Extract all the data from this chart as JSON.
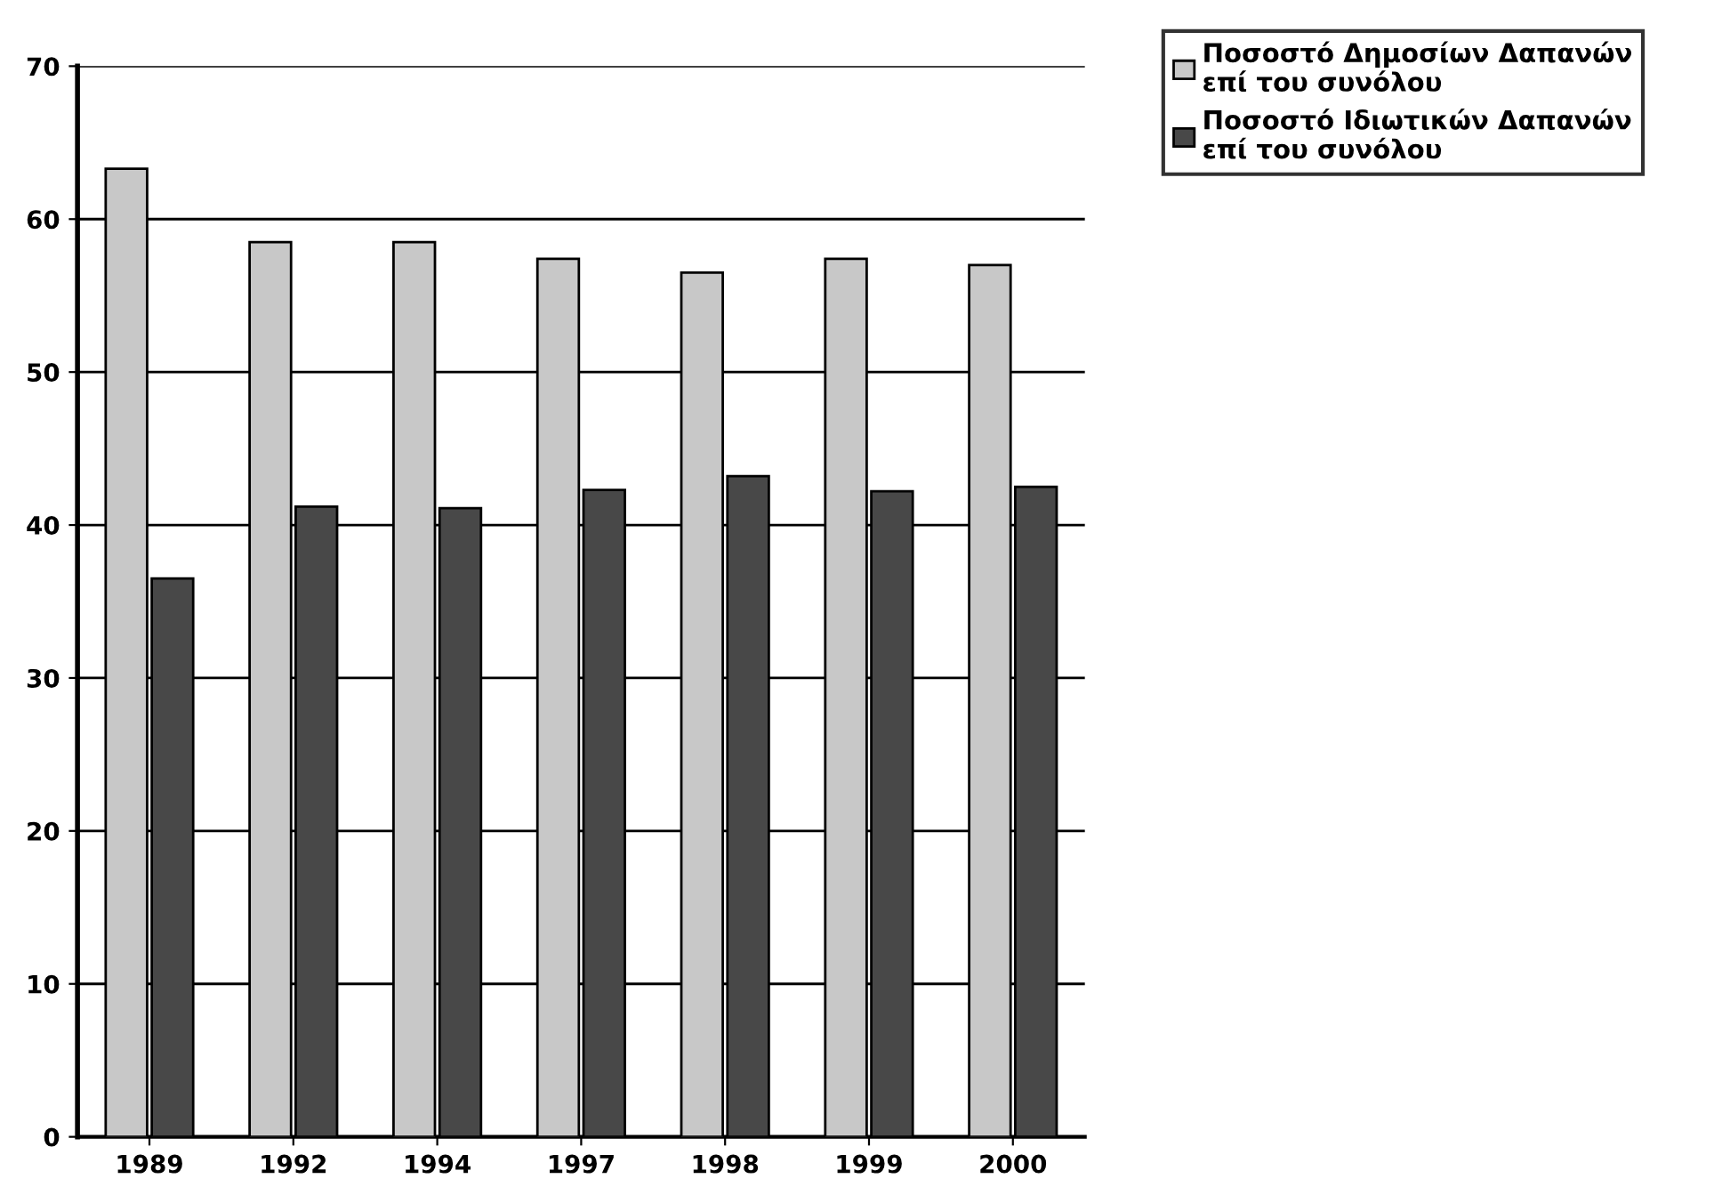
{
  "chart_data": {
    "type": "bar",
    "categories": [
      "1989",
      "1992",
      "1994",
      "1997",
      "1998",
      "1999",
      "2000"
    ],
    "series": [
      {
        "name": "Ποσοστό Δημοσίων Δαπανών επί του συνόλου",
        "color": "#c8c8c8",
        "values": [
          63.3,
          58.5,
          58.5,
          57.4,
          56.5,
          57.4,
          57.0
        ]
      },
      {
        "name": "Ποσοστό Ιδιωτικών Δαπανών επί του συνόλου",
        "color": "#484848",
        "values": [
          36.5,
          41.2,
          41.1,
          42.3,
          43.2,
          42.2,
          42.5
        ]
      }
    ],
    "ylim": [
      0,
      70
    ],
    "yticks": [
      0,
      10,
      20,
      30,
      40,
      50,
      60,
      70
    ],
    "grid": "y",
    "legend": "top right"
  }
}
